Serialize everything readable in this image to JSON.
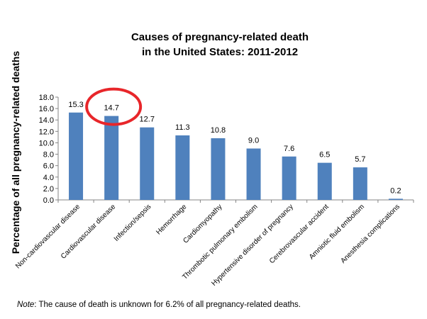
{
  "chart_data": {
    "type": "bar",
    "title_lines": [
      "Causes of pregnancy-related death",
      "in the United States: 2011-2012"
    ],
    "xlabel": "",
    "ylabel": "Percentage of all pregnancy-related deaths",
    "ylim": [
      0,
      18
    ],
    "yticks": [
      "0.0",
      "2.0",
      "4.0",
      "6.0",
      "8.0",
      "10.0",
      "12.0",
      "14.0",
      "16.0",
      "18.0"
    ],
    "categories": [
      "Non-cardiovascular disease",
      "Cardiovascular disease",
      "Infection/sepsis",
      "Hemorrhage",
      "Cardiomyopathy",
      "Thrombotic pulmonary embolism",
      "Hypertensive disorder of pregnancy",
      "Cerebrovascular accident",
      "Amniotic fluid embolism",
      "Anesthesia complications"
    ],
    "values": [
      15.3,
      14.7,
      12.7,
      11.3,
      10.8,
      9.0,
      7.6,
      6.5,
      5.7,
      0.2
    ],
    "data_labels": [
      "15.3",
      "14.7",
      "12.7",
      "11.3",
      "10.8",
      "9.0",
      "7.6",
      "6.5",
      "5.7",
      "0.2"
    ],
    "bar_color": "#4F81BD",
    "grid": false,
    "legend": "none",
    "annotation": {
      "type": "red-circle",
      "target_category": "Cardiovascular disease",
      "color": "#E8262A"
    }
  },
  "note": {
    "prefix": "Note",
    "text": ": The cause of death is unknown for 6.2% of all pregnancy-related deaths."
  }
}
